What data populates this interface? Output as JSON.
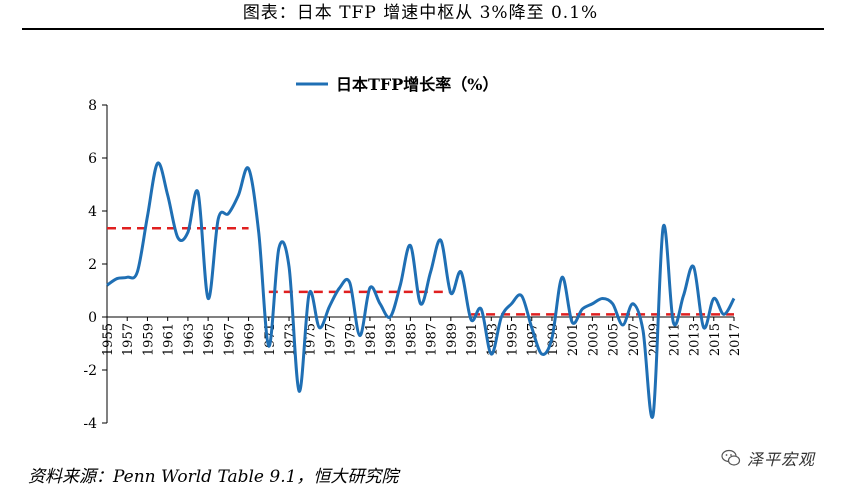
{
  "header": {
    "title": "图表：日本 TFP 增速中枢从 3%降至 0.1%"
  },
  "footer": {
    "source": "资料来源：Penn World Table 9.1，恒大研究院"
  },
  "watermark": {
    "text": "泽平宏观",
    "icon": "wechat-icon"
  },
  "chart_data": {
    "type": "line",
    "title": "",
    "xlabel": "",
    "ylabel": "",
    "ylim": [
      -4,
      8
    ],
    "yticks": [
      -4,
      -2,
      0,
      2,
      4,
      6,
      8
    ],
    "legend": {
      "position": "top-center"
    },
    "grid": false,
    "x": [
      1955,
      1956,
      1957,
      1958,
      1959,
      1960,
      1961,
      1962,
      1963,
      1964,
      1965,
      1966,
      1967,
      1968,
      1969,
      1970,
      1971,
      1972,
      1973,
      1974,
      1975,
      1976,
      1977,
      1978,
      1979,
      1980,
      1981,
      1982,
      1983,
      1984,
      1985,
      1986,
      1987,
      1988,
      1989,
      1990,
      1991,
      1992,
      1993,
      1994,
      1995,
      1996,
      1997,
      1998,
      1999,
      2000,
      2001,
      2002,
      2003,
      2004,
      2005,
      2006,
      2007,
      2008,
      2009,
      2010,
      2011,
      2012,
      2013,
      2014,
      2015,
      2016,
      2017
    ],
    "xticks": [
      1955,
      1957,
      1959,
      1961,
      1963,
      1965,
      1967,
      1969,
      1971,
      1973,
      1975,
      1977,
      1979,
      1981,
      1983,
      1985,
      1987,
      1989,
      1991,
      1993,
      1995,
      1997,
      1999,
      2001,
      2003,
      2005,
      2007,
      2009,
      2011,
      2013,
      2015,
      2017
    ],
    "series": [
      {
        "name": "日本TFP增长率（%）",
        "color": "#1f6fb4",
        "values": [
          1.2,
          1.45,
          1.5,
          1.7,
          3.8,
          5.8,
          4.6,
          3.0,
          3.2,
          4.7,
          0.7,
          3.7,
          3.9,
          4.6,
          5.6,
          3.2,
          -1.1,
          2.6,
          1.9,
          -2.8,
          0.9,
          -0.4,
          0.4,
          1.1,
          1.3,
          -0.7,
          1.1,
          0.5,
          0.0,
          1.2,
          2.7,
          0.5,
          1.7,
          2.9,
          0.9,
          1.7,
          -0.1,
          0.3,
          -1.4,
          0.0,
          0.5,
          0.8,
          -0.4,
          -1.4,
          -0.8,
          1.5,
          -0.2,
          0.3,
          0.5,
          0.7,
          0.5,
          -0.3,
          0.5,
          -0.5,
          -3.7,
          3.4,
          -0.2,
          0.8,
          1.9,
          -0.4,
          0.7,
          0.1,
          0.7
        ]
      }
    ],
    "reference_lines": [
      {
        "x_start": 1955,
        "x_end": 1969,
        "y": 3.35,
        "color": "#e02020"
      },
      {
        "x_start": 1971,
        "x_end": 1989,
        "y": 0.95,
        "color": "#e02020"
      },
      {
        "x_start": 1991,
        "x_end": 2017,
        "y": 0.1,
        "color": "#e02020"
      }
    ]
  }
}
